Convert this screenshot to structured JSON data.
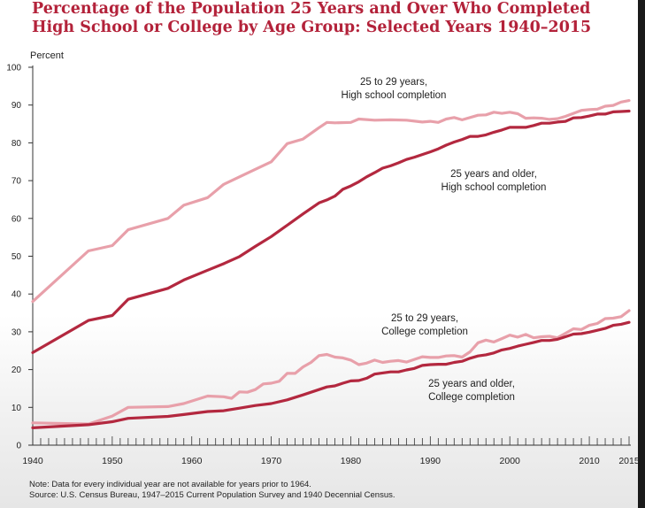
{
  "title_lines": [
    "Percentage of the Population 25 Years and Over Who Completed",
    "High School or College by Age Group: Selected Years 1940–2015"
  ],
  "notes": [
    "Note: Data for every individual year are not available for years prior to 1964.",
    "Source: U.S. Census Bureau, 1947–2015 Current Population Survey and 1940 Decennial Census."
  ],
  "chart_data": {
    "type": "line",
    "title": "Percentage of the Population 25 Years and Over Who Completed High School or College by Age Group: Selected Years 1940–2015",
    "ylabel": "Percent",
    "xlabel": "",
    "xlim": [
      1940,
      2015
    ],
    "ylim": [
      0,
      100
    ],
    "x_ticks": [
      1940,
      1950,
      1960,
      1970,
      1980,
      1990,
      2000,
      2010,
      2015
    ],
    "y_ticks": [
      0,
      10,
      20,
      30,
      40,
      50,
      60,
      70,
      80,
      90,
      100
    ],
    "grid": false,
    "legend": "direct labels",
    "series": [
      {
        "name": "25 to 29 years, High school completion",
        "color": "#e8a0aa",
        "points": [
          [
            1940,
            38
          ],
          [
            1947,
            51.4
          ],
          [
            1950,
            52.8
          ],
          [
            1952,
            57
          ],
          [
            1957,
            60
          ],
          [
            1959,
            63.5
          ],
          [
            1962,
            65.5
          ],
          [
            1964,
            69
          ],
          [
            1966,
            71
          ],
          [
            1968,
            73
          ],
          [
            1970,
            75
          ],
          [
            1972,
            79.8
          ],
          [
            1974,
            81
          ],
          [
            1976,
            84
          ],
          [
            1977,
            85.4
          ],
          [
            1978,
            85.3
          ],
          [
            1980,
            85.4
          ],
          [
            1981,
            86.3
          ],
          [
            1983,
            86
          ],
          [
            1985,
            86.1
          ],
          [
            1987,
            86
          ],
          [
            1989,
            85.5
          ],
          [
            1990,
            85.7
          ],
          [
            1991,
            85.4
          ],
          [
            1992,
            86.3
          ],
          [
            1993,
            86.7
          ],
          [
            1994,
            86.1
          ],
          [
            1996,
            87.3
          ],
          [
            1997,
            87.4
          ],
          [
            1998,
            88.1
          ],
          [
            1999,
            87.8
          ],
          [
            2000,
            88.1
          ],
          [
            2001,
            87.7
          ],
          [
            2002,
            86.5
          ],
          [
            2003,
            86.6
          ],
          [
            2004,
            86.5
          ],
          [
            2005,
            86.2
          ],
          [
            2006,
            86.4
          ],
          [
            2007,
            87
          ],
          [
            2008,
            87.8
          ],
          [
            2009,
            88.6
          ],
          [
            2010,
            88.8
          ],
          [
            2011,
            88.9
          ],
          [
            2012,
            89.7
          ],
          [
            2013,
            89.9
          ],
          [
            2014,
            90.8
          ],
          [
            2015,
            91.2
          ]
        ]
      },
      {
        "name": "25 years and older, High school completion",
        "color": "#b3283f",
        "points": [
          [
            1940,
            24.5
          ],
          [
            1947,
            33
          ],
          [
            1950,
            34.3
          ],
          [
            1952,
            38.6
          ],
          [
            1957,
            41.5
          ],
          [
            1959,
            43.7
          ],
          [
            1962,
            46.3
          ],
          [
            1964,
            48
          ],
          [
            1966,
            49.9
          ],
          [
            1968,
            52.6
          ],
          [
            1970,
            55.2
          ],
          [
            1972,
            58.2
          ],
          [
            1974,
            61.2
          ],
          [
            1976,
            64.1
          ],
          [
            1977,
            64.9
          ],
          [
            1978,
            65.9
          ],
          [
            1979,
            67.7
          ],
          [
            1980,
            68.6
          ],
          [
            1981,
            69.7
          ],
          [
            1982,
            71
          ],
          [
            1983,
            72.1
          ],
          [
            1984,
            73.3
          ],
          [
            1985,
            73.9
          ],
          [
            1986,
            74.7
          ],
          [
            1987,
            75.6
          ],
          [
            1988,
            76.2
          ],
          [
            1989,
            76.9
          ],
          [
            1990,
            77.6
          ],
          [
            1991,
            78.4
          ],
          [
            1992,
            79.4
          ],
          [
            1993,
            80.2
          ],
          [
            1994,
            80.9
          ],
          [
            1995,
            81.7
          ],
          [
            1996,
            81.7
          ],
          [
            1997,
            82.1
          ],
          [
            1998,
            82.8
          ],
          [
            1999,
            83.4
          ],
          [
            2000,
            84.1
          ],
          [
            2001,
            84.1
          ],
          [
            2002,
            84.1
          ],
          [
            2003,
            84.6
          ],
          [
            2004,
            85.2
          ],
          [
            2005,
            85.2
          ],
          [
            2006,
            85.5
          ],
          [
            2007,
            85.7
          ],
          [
            2008,
            86.6
          ],
          [
            2009,
            86.7
          ],
          [
            2010,
            87.1
          ],
          [
            2011,
            87.6
          ],
          [
            2012,
            87.6
          ],
          [
            2013,
            88.2
          ],
          [
            2014,
            88.3
          ],
          [
            2015,
            88.4
          ]
        ]
      },
      {
        "name": "25 to 29 years, College completion",
        "color": "#e8a0aa",
        "points": [
          [
            1940,
            5.9
          ],
          [
            1947,
            5.6
          ],
          [
            1950,
            7.7
          ],
          [
            1952,
            10
          ],
          [
            1957,
            10.2
          ],
          [
            1959,
            11
          ],
          [
            1962,
            13
          ],
          [
            1964,
            12.8
          ],
          [
            1965,
            12.4
          ],
          [
            1966,
            14.1
          ],
          [
            1967,
            14
          ],
          [
            1968,
            14.7
          ],
          [
            1969,
            16.2
          ],
          [
            1970,
            16.4
          ],
          [
            1971,
            16.9
          ],
          [
            1972,
            19
          ],
          [
            1973,
            19
          ],
          [
            1974,
            20.7
          ],
          [
            1975,
            21.9
          ],
          [
            1976,
            23.7
          ],
          [
            1977,
            24
          ],
          [
            1978,
            23.3
          ],
          [
            1979,
            23.1
          ],
          [
            1980,
            22.5
          ],
          [
            1981,
            21.3
          ],
          [
            1982,
            21.7
          ],
          [
            1983,
            22.5
          ],
          [
            1984,
            21.9
          ],
          [
            1985,
            22.2
          ],
          [
            1986,
            22.4
          ],
          [
            1987,
            22
          ],
          [
            1988,
            22.7
          ],
          [
            1989,
            23.4
          ],
          [
            1990,
            23.2
          ],
          [
            1991,
            23.2
          ],
          [
            1992,
            23.6
          ],
          [
            1993,
            23.7
          ],
          [
            1994,
            23.3
          ],
          [
            1995,
            24.7
          ],
          [
            1996,
            27.1
          ],
          [
            1997,
            27.8
          ],
          [
            1998,
            27.3
          ],
          [
            1999,
            28.2
          ],
          [
            2000,
            29.1
          ],
          [
            2001,
            28.6
          ],
          [
            2002,
            29.3
          ],
          [
            2003,
            28.4
          ],
          [
            2004,
            28.7
          ],
          [
            2005,
            28.8
          ],
          [
            2006,
            28.4
          ],
          [
            2007,
            29.6
          ],
          [
            2008,
            30.8
          ],
          [
            2009,
            30.6
          ],
          [
            2010,
            31.7
          ],
          [
            2011,
            32.2
          ],
          [
            2012,
            33.5
          ],
          [
            2013,
            33.6
          ],
          [
            2014,
            34
          ],
          [
            2015,
            35.6
          ]
        ]
      },
      {
        "name": "25 years and older, College completion",
        "color": "#b3283f",
        "points": [
          [
            1940,
            4.6
          ],
          [
            1947,
            5.4
          ],
          [
            1950,
            6.2
          ],
          [
            1952,
            7.1
          ],
          [
            1957,
            7.6
          ],
          [
            1959,
            8.1
          ],
          [
            1962,
            8.9
          ],
          [
            1964,
            9.1
          ],
          [
            1966,
            9.8
          ],
          [
            1968,
            10.5
          ],
          [
            1970,
            11
          ],
          [
            1972,
            12
          ],
          [
            1974,
            13.3
          ],
          [
            1976,
            14.7
          ],
          [
            1977,
            15.4
          ],
          [
            1978,
            15.7
          ],
          [
            1979,
            16.4
          ],
          [
            1980,
            17
          ],
          [
            1981,
            17.1
          ],
          [
            1982,
            17.7
          ],
          [
            1983,
            18.8
          ],
          [
            1984,
            19.1
          ],
          [
            1985,
            19.4
          ],
          [
            1986,
            19.4
          ],
          [
            1987,
            19.9
          ],
          [
            1988,
            20.3
          ],
          [
            1989,
            21.1
          ],
          [
            1990,
            21.3
          ],
          [
            1991,
            21.4
          ],
          [
            1992,
            21.4
          ],
          [
            1993,
            21.9
          ],
          [
            1994,
            22.2
          ],
          [
            1995,
            23
          ],
          [
            1996,
            23.6
          ],
          [
            1997,
            23.9
          ],
          [
            1998,
            24.4
          ],
          [
            1999,
            25.2
          ],
          [
            2000,
            25.6
          ],
          [
            2001,
            26.2
          ],
          [
            2002,
            26.7
          ],
          [
            2003,
            27.2
          ],
          [
            2004,
            27.7
          ],
          [
            2005,
            27.7
          ],
          [
            2006,
            28
          ],
          [
            2007,
            28.7
          ],
          [
            2008,
            29.4
          ],
          [
            2009,
            29.5
          ],
          [
            2010,
            29.9
          ],
          [
            2011,
            30.4
          ],
          [
            2012,
            30.9
          ],
          [
            2013,
            31.7
          ],
          [
            2014,
            32
          ],
          [
            2015,
            32.5
          ]
        ]
      }
    ],
    "annotations": [
      {
        "lines": [
          "25 to 29 years,",
          "High school completion"
        ]
      },
      {
        "lines": [
          "25 years and older,",
          "High school completion"
        ]
      },
      {
        "lines": [
          "25 to 29 years,",
          "College completion"
        ]
      },
      {
        "lines": [
          "25 years and older,",
          "College completion"
        ]
      }
    ]
  }
}
